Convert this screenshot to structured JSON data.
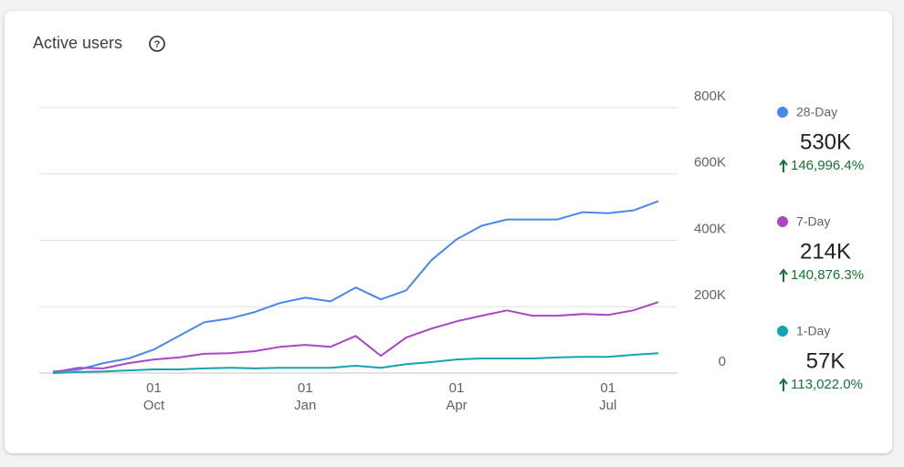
{
  "chart_data": {
    "type": "line",
    "title": "Active users",
    "categories": [
      null,
      null,
      null,
      null,
      "01\nOct",
      null,
      null,
      null,
      null,
      null,
      "01\nJan",
      null,
      null,
      null,
      null,
      null,
      "01\nApr",
      null,
      null,
      null,
      null,
      null,
      "01\nJul",
      null,
      null
    ],
    "ylim": [
      0,
      800000
    ],
    "yticks": [
      0,
      {
        "value": 200000,
        "label": "200K"
      },
      {
        "value": 400000,
        "label": "400K"
      },
      {
        "value": 600000,
        "label": "600K"
      },
      {
        "value": 800000,
        "label": "800K"
      }
    ],
    "grid": true,
    "series": [
      {
        "name": "28-Day",
        "color": "#4a86f0",
        "total": "530K",
        "change": "146,996.4%",
        "values": [
          5000,
          10000,
          30000,
          44000,
          71000,
          112000,
          153000,
          164000,
          184000,
          211000,
          227000,
          216000,
          258000,
          222000,
          249000,
          340000,
          403000,
          444000,
          463000,
          463000,
          463000,
          485000,
          482000,
          490000,
          518000
        ]
      },
      {
        "name": "7-Day",
        "color": "#aa46c4",
        "total": "214K",
        "change": "140,876.3%",
        "values": [
          2000,
          16000,
          14000,
          30000,
          41000,
          47000,
          58000,
          60000,
          66000,
          79000,
          85000,
          79000,
          112000,
          52000,
          107000,
          134000,
          156000,
          173000,
          189000,
          173000,
          173000,
          178000,
          175000,
          189000,
          214000
        ]
      },
      {
        "name": "1-Day",
        "color": "#12a4b0",
        "total": "57K",
        "change": "113,022.0%",
        "values": [
          0,
          3000,
          5000,
          8000,
          11000,
          11000,
          14000,
          16000,
          14000,
          16000,
          16000,
          16000,
          22000,
          16000,
          27000,
          33000,
          41000,
          44000,
          44000,
          44000,
          47000,
          49000,
          49000,
          55000,
          60000
        ]
      }
    ]
  }
}
